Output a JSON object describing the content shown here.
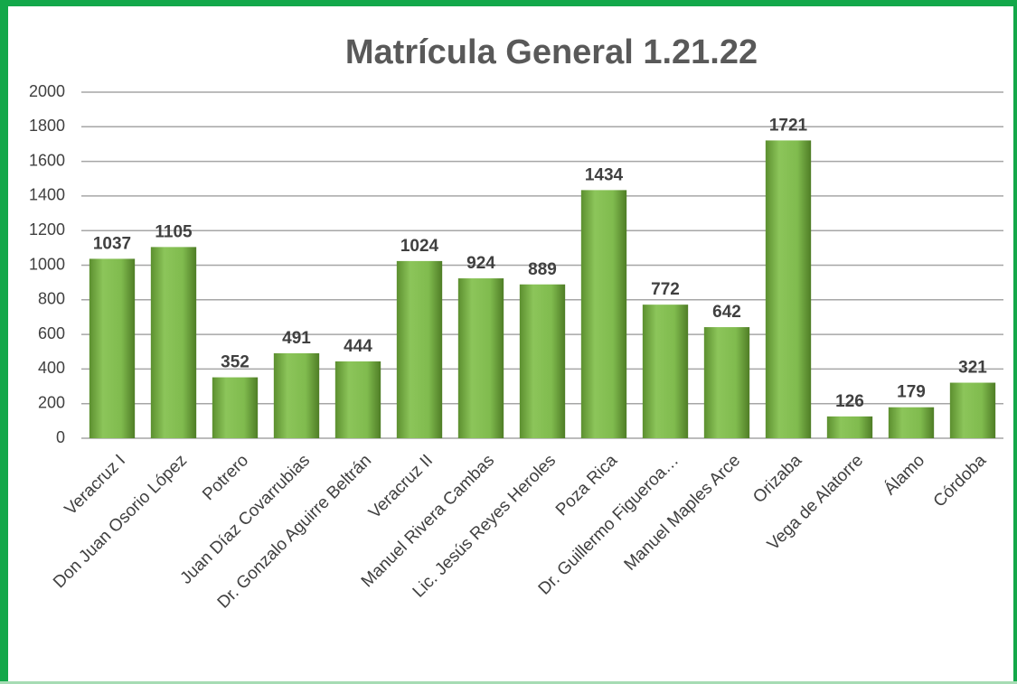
{
  "chart_data": {
    "type": "bar",
    "title": "Matrícula General 1.21.22",
    "categories": [
      "Veracruz I",
      "Don Juan Osorio López",
      "Potrero",
      "Juan Díaz Covarrubias",
      "Dr. Gonzalo Aguirre Beltrán",
      "Veracruz II",
      "Manuel Rivera Cambas",
      "Lic. Jesús Reyes Heroles",
      "Poza Rica",
      "Dr. Guillermo Figueroa…",
      "Manuel Maples Arce",
      "Orizaba",
      "Vega de Alatorre",
      "Álamo",
      "Córdoba"
    ],
    "values": [
      1037,
      1105,
      352,
      491,
      444,
      1024,
      924,
      889,
      1434,
      772,
      642,
      1721,
      126,
      179,
      321
    ],
    "color": "#7ab648",
    "ylim": [
      0,
      2000
    ],
    "yticks": [
      0,
      200,
      400,
      600,
      800,
      1000,
      1200,
      1400,
      1600,
      1800,
      2000
    ],
    "grid": true
  }
}
